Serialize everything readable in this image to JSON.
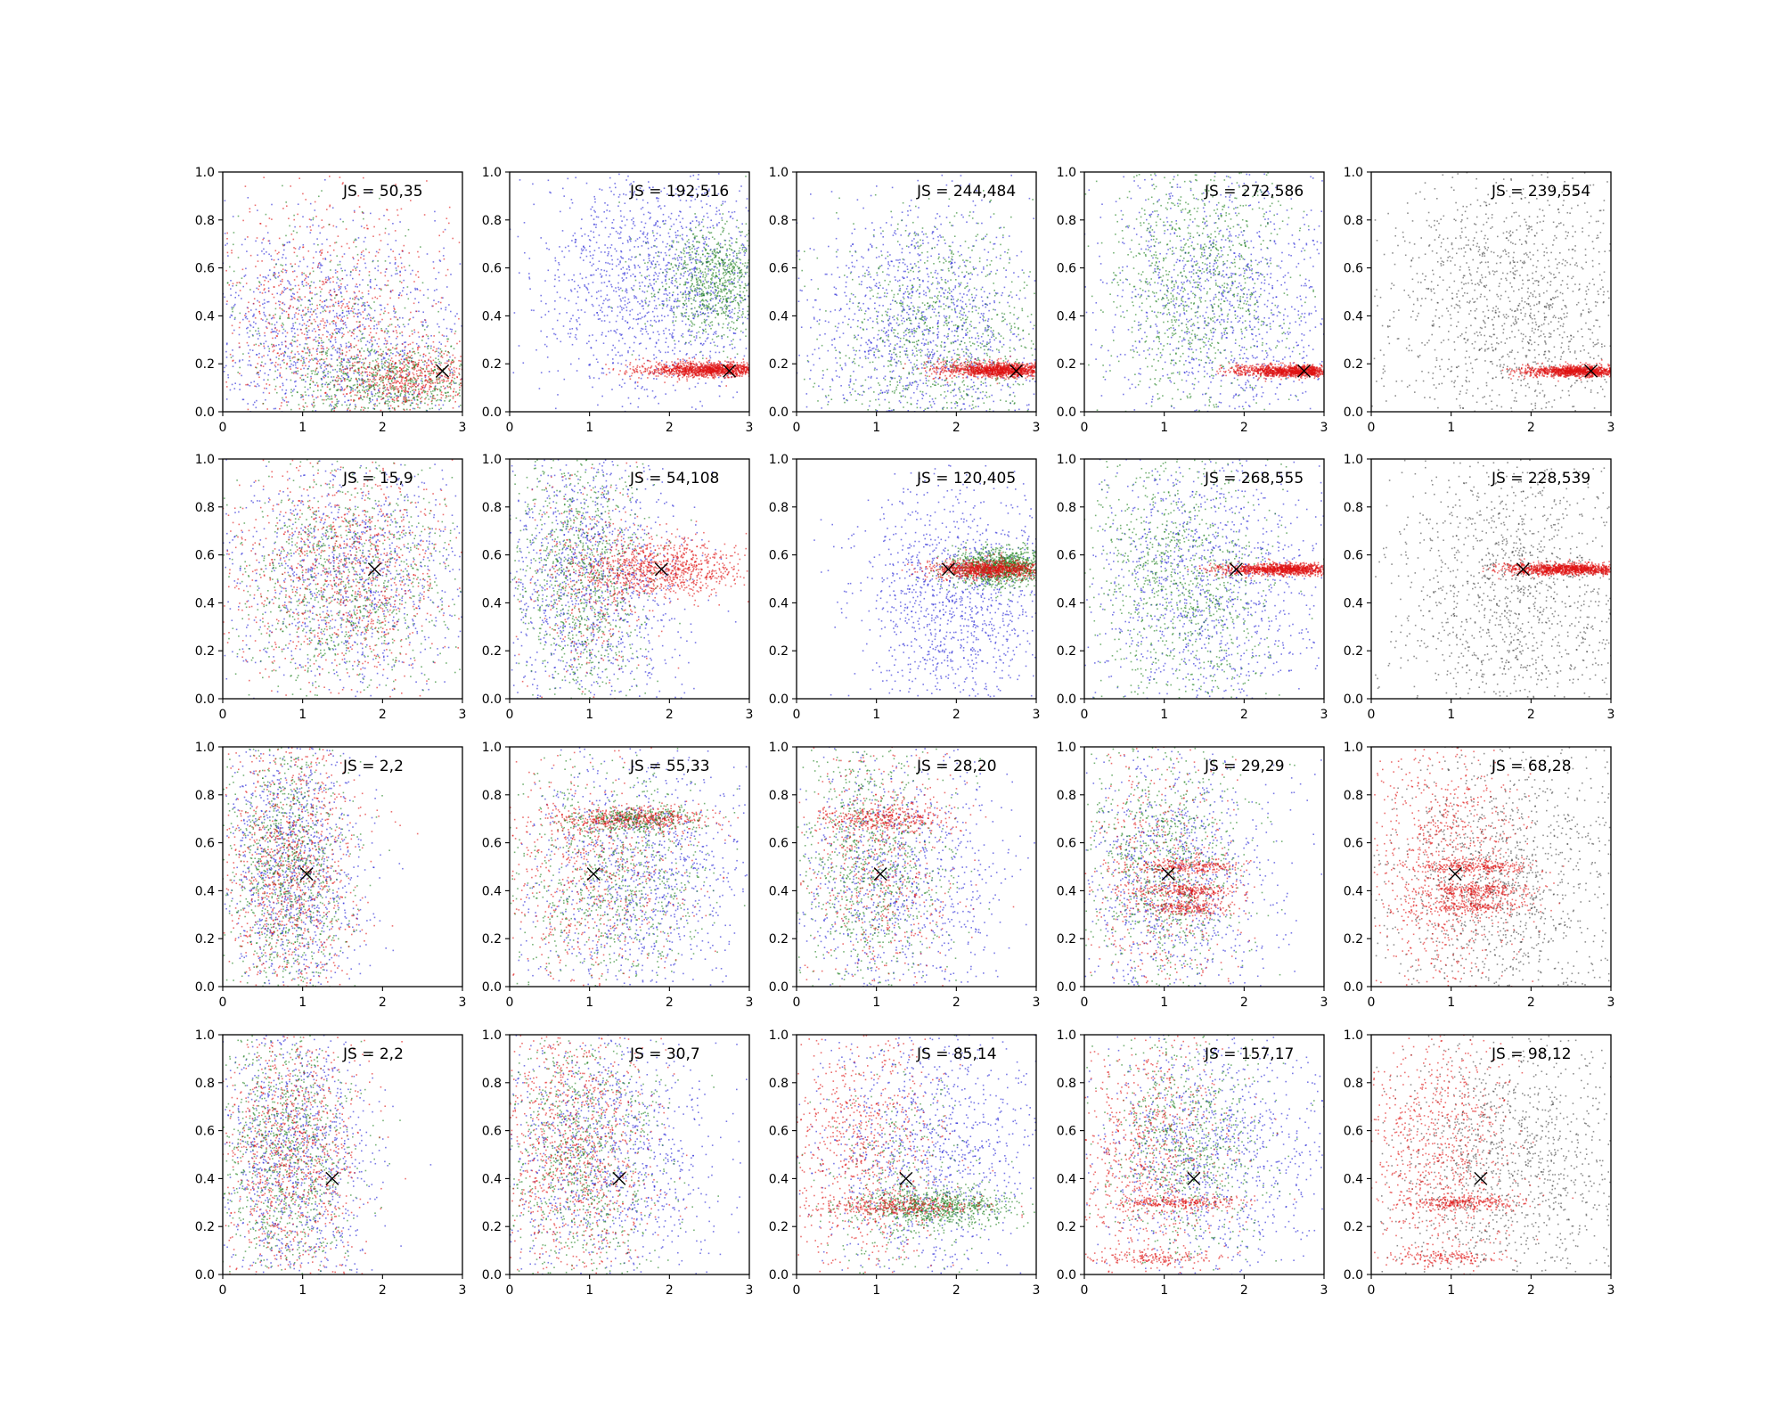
{
  "colors": {
    "blue": "#1f1fd6",
    "green": "#1a7f1a",
    "red": "#e01010",
    "black": "#333333",
    "marker": "#000000"
  },
  "chart_data": {
    "type": "scatter",
    "layout": "grid 4 rows x 5 columns",
    "xlim": [
      0,
      3
    ],
    "ylim": [
      0.0,
      1.0
    ],
    "x_ticks": [
      "0",
      "1",
      "2",
      "3"
    ],
    "y_ticks": [
      "0.0",
      "0.2",
      "0.4",
      "0.6",
      "0.8",
      "1.0"
    ],
    "annotation_prefix": "JS = ",
    "panels": [
      {
        "row": 0,
        "col": 0,
        "js": "50,35",
        "marker": [
          2.75,
          0.17
        ],
        "clusters": [
          {
            "c": "blue",
            "n": 1300,
            "x": 1.3,
            "sx": 0.9,
            "y": 0.3,
            "sy": 0.25
          },
          {
            "c": "red",
            "n": 900,
            "x": 1.3,
            "sx": 0.8,
            "y": 0.35,
            "sy": 0.3
          },
          {
            "c": "green",
            "n": 700,
            "x": 2.1,
            "sx": 0.6,
            "y": 0.13,
            "sy": 0.08
          },
          {
            "c": "red",
            "n": 500,
            "x": 2.4,
            "sx": 0.4,
            "y": 0.14,
            "sy": 0.06
          },
          {
            "c": "green",
            "n": 300,
            "x": 1.2,
            "sx": 0.7,
            "y": 0.4,
            "sy": 0.25
          }
        ]
      },
      {
        "row": 0,
        "col": 1,
        "js": "192,516",
        "marker": [
          2.75,
          0.17
        ],
        "clusters": [
          {
            "c": "blue",
            "n": 1500,
            "x": 1.9,
            "sx": 0.8,
            "y": 0.55,
            "sy": 0.25
          },
          {
            "c": "green",
            "n": 900,
            "x": 2.6,
            "sx": 0.4,
            "y": 0.55,
            "sy": 0.12
          },
          {
            "c": "red",
            "n": 1200,
            "x": 2.5,
            "sx": 0.35,
            "y": 0.175,
            "sy": 0.015
          },
          {
            "c": "red",
            "n": 80,
            "x": 1.8,
            "sx": 0.3,
            "y": 0.18,
            "sy": 0.02
          }
        ]
      },
      {
        "row": 0,
        "col": 2,
        "js": "244,484",
        "marker": [
          2.75,
          0.17
        ],
        "clusters": [
          {
            "c": "blue",
            "n": 1300,
            "x": 1.6,
            "sx": 0.8,
            "y": 0.35,
            "sy": 0.25
          },
          {
            "c": "green",
            "n": 1000,
            "x": 1.8,
            "sx": 0.7,
            "y": 0.3,
            "sy": 0.25
          },
          {
            "c": "red",
            "n": 1200,
            "x": 2.55,
            "sx": 0.3,
            "y": 0.175,
            "sy": 0.015
          },
          {
            "c": "red",
            "n": 80,
            "x": 1.9,
            "sx": 0.2,
            "y": 0.18,
            "sy": 0.02
          }
        ]
      },
      {
        "row": 0,
        "col": 3,
        "js": "272,586",
        "marker": [
          2.75,
          0.17
        ],
        "clusters": [
          {
            "c": "blue",
            "n": 1200,
            "x": 1.8,
            "sx": 0.8,
            "y": 0.45,
            "sy": 0.3
          },
          {
            "c": "green",
            "n": 1000,
            "x": 1.4,
            "sx": 0.6,
            "y": 0.55,
            "sy": 0.28
          },
          {
            "c": "red",
            "n": 1100,
            "x": 2.6,
            "sx": 0.3,
            "y": 0.17,
            "sy": 0.012
          },
          {
            "c": "red",
            "n": 60,
            "x": 1.95,
            "sx": 0.15,
            "y": 0.17,
            "sy": 0.015
          }
        ]
      },
      {
        "row": 0,
        "col": 4,
        "js": "239,554",
        "marker": [
          2.75,
          0.17
        ],
        "clusters": [
          {
            "c": "black",
            "n": 1400,
            "x": 1.8,
            "sx": 0.8,
            "y": 0.45,
            "sy": 0.3
          },
          {
            "c": "red",
            "n": 1100,
            "x": 2.6,
            "sx": 0.3,
            "y": 0.17,
            "sy": 0.012
          },
          {
            "c": "red",
            "n": 60,
            "x": 1.95,
            "sx": 0.15,
            "y": 0.17,
            "sy": 0.015
          }
        ]
      },
      {
        "row": 1,
        "col": 0,
        "js": "15,9",
        "marker": [
          1.9,
          0.54
        ],
        "clusters": [
          {
            "c": "blue",
            "n": 1100,
            "x": 1.6,
            "sx": 0.8,
            "y": 0.5,
            "sy": 0.25
          },
          {
            "c": "green",
            "n": 1000,
            "x": 1.5,
            "sx": 0.7,
            "y": 0.5,
            "sy": 0.25
          },
          {
            "c": "red",
            "n": 1000,
            "x": 1.5,
            "sx": 0.7,
            "y": 0.52,
            "sy": 0.25
          }
        ]
      },
      {
        "row": 1,
        "col": 1,
        "js": "54,108",
        "marker": [
          1.9,
          0.54
        ],
        "clusters": [
          {
            "c": "blue",
            "n": 1200,
            "x": 1.0,
            "sx": 0.6,
            "y": 0.5,
            "sy": 0.28
          },
          {
            "c": "green",
            "n": 1000,
            "x": 0.9,
            "sx": 0.4,
            "y": 0.5,
            "sy": 0.3
          },
          {
            "c": "red",
            "n": 900,
            "x": 1.9,
            "sx": 0.5,
            "y": 0.54,
            "sy": 0.06
          },
          {
            "c": "red",
            "n": 300,
            "x": 1.0,
            "sx": 0.4,
            "y": 0.5,
            "sy": 0.25
          }
        ]
      },
      {
        "row": 1,
        "col": 2,
        "js": "120,405",
        "marker": [
          1.9,
          0.54
        ],
        "clusters": [
          {
            "c": "blue",
            "n": 1200,
            "x": 2.0,
            "sx": 0.6,
            "y": 0.4,
            "sy": 0.25
          },
          {
            "c": "green",
            "n": 1100,
            "x": 2.6,
            "sx": 0.35,
            "y": 0.55,
            "sy": 0.04
          },
          {
            "c": "red",
            "n": 1000,
            "x": 2.4,
            "sx": 0.35,
            "y": 0.54,
            "sy": 0.02
          }
        ]
      },
      {
        "row": 1,
        "col": 3,
        "js": "268,555",
        "marker": [
          1.9,
          0.54
        ],
        "clusters": [
          {
            "c": "blue",
            "n": 1200,
            "x": 1.6,
            "sx": 0.8,
            "y": 0.45,
            "sy": 0.3
          },
          {
            "c": "green",
            "n": 1000,
            "x": 1.2,
            "sx": 0.6,
            "y": 0.5,
            "sy": 0.28
          },
          {
            "c": "red",
            "n": 1100,
            "x": 2.5,
            "sx": 0.35,
            "y": 0.54,
            "sy": 0.012
          },
          {
            "c": "red",
            "n": 60,
            "x": 1.85,
            "sx": 0.2,
            "y": 0.54,
            "sy": 0.015
          }
        ]
      },
      {
        "row": 1,
        "col": 4,
        "js": "228,539",
        "marker": [
          1.9,
          0.54
        ],
        "clusters": [
          {
            "c": "black",
            "n": 1400,
            "x": 1.8,
            "sx": 0.8,
            "y": 0.45,
            "sy": 0.3
          },
          {
            "c": "red",
            "n": 1100,
            "x": 2.5,
            "sx": 0.35,
            "y": 0.54,
            "sy": 0.012
          },
          {
            "c": "red",
            "n": 60,
            "x": 1.85,
            "sx": 0.2,
            "y": 0.54,
            "sy": 0.015
          }
        ]
      },
      {
        "row": 2,
        "col": 0,
        "js": "2,2",
        "marker": [
          1.05,
          0.47
        ],
        "clusters": [
          {
            "c": "blue",
            "n": 1100,
            "x": 0.9,
            "sx": 0.45,
            "y": 0.5,
            "sy": 0.3
          },
          {
            "c": "green",
            "n": 1000,
            "x": 0.8,
            "sx": 0.4,
            "y": 0.5,
            "sy": 0.3
          },
          {
            "c": "red",
            "n": 1000,
            "x": 0.85,
            "sx": 0.45,
            "y": 0.5,
            "sy": 0.3
          }
        ]
      },
      {
        "row": 2,
        "col": 1,
        "js": "55,33",
        "marker": [
          1.05,
          0.47
        ],
        "clusters": [
          {
            "c": "blue",
            "n": 1100,
            "x": 1.6,
            "sx": 0.7,
            "y": 0.45,
            "sy": 0.28
          },
          {
            "c": "green",
            "n": 800,
            "x": 1.3,
            "sx": 0.6,
            "y": 0.45,
            "sy": 0.25
          },
          {
            "c": "red",
            "n": 500,
            "x": 1.6,
            "sx": 0.5,
            "y": 0.7,
            "sy": 0.025
          },
          {
            "c": "red",
            "n": 600,
            "x": 1.0,
            "sx": 0.6,
            "y": 0.45,
            "sy": 0.25
          },
          {
            "c": "green",
            "n": 250,
            "x": 1.6,
            "sx": 0.4,
            "y": 0.7,
            "sy": 0.025
          }
        ]
      },
      {
        "row": 2,
        "col": 2,
        "js": "28,20",
        "marker": [
          1.05,
          0.47
        ],
        "clusters": [
          {
            "c": "blue",
            "n": 1000,
            "x": 1.3,
            "sx": 0.7,
            "y": 0.45,
            "sy": 0.28
          },
          {
            "c": "green",
            "n": 900,
            "x": 0.9,
            "sx": 0.5,
            "y": 0.5,
            "sy": 0.28
          },
          {
            "c": "red",
            "n": 600,
            "x": 1.0,
            "sx": 0.5,
            "y": 0.5,
            "sy": 0.28
          },
          {
            "c": "red",
            "n": 300,
            "x": 1.1,
            "sx": 0.4,
            "y": 0.7,
            "sy": 0.025
          }
        ]
      },
      {
        "row": 2,
        "col": 3,
        "js": "29,29",
        "marker": [
          1.05,
          0.47
        ],
        "clusters": [
          {
            "c": "blue",
            "n": 1000,
            "x": 1.1,
            "sx": 0.7,
            "y": 0.45,
            "sy": 0.28
          },
          {
            "c": "green",
            "n": 900,
            "x": 1.0,
            "sx": 0.5,
            "y": 0.5,
            "sy": 0.25
          },
          {
            "c": "red",
            "n": 500,
            "x": 0.9,
            "sx": 0.5,
            "y": 0.45,
            "sy": 0.28
          },
          {
            "c": "red",
            "n": 250,
            "x": 1.3,
            "sx": 0.3,
            "y": 0.5,
            "sy": 0.015
          },
          {
            "c": "red",
            "n": 250,
            "x": 1.3,
            "sx": 0.3,
            "y": 0.4,
            "sy": 0.015
          },
          {
            "c": "red",
            "n": 200,
            "x": 1.3,
            "sx": 0.3,
            "y": 0.33,
            "sy": 0.015
          }
        ]
      },
      {
        "row": 2,
        "col": 4,
        "js": "68,28",
        "marker": [
          1.05,
          0.47
        ],
        "clusters": [
          {
            "c": "black",
            "n": 1300,
            "x": 1.7,
            "sx": 0.8,
            "y": 0.45,
            "sy": 0.3
          },
          {
            "c": "red",
            "n": 900,
            "x": 0.9,
            "sx": 0.5,
            "y": 0.5,
            "sy": 0.28
          },
          {
            "c": "red",
            "n": 250,
            "x": 1.3,
            "sx": 0.35,
            "y": 0.5,
            "sy": 0.015
          },
          {
            "c": "red",
            "n": 250,
            "x": 1.3,
            "sx": 0.35,
            "y": 0.4,
            "sy": 0.015
          },
          {
            "c": "red",
            "n": 200,
            "x": 1.3,
            "sx": 0.35,
            "y": 0.33,
            "sy": 0.015
          }
        ]
      },
      {
        "row": 3,
        "col": 0,
        "js": "2,2",
        "marker": [
          1.37,
          0.4
        ],
        "clusters": [
          {
            "c": "blue",
            "n": 1100,
            "x": 0.9,
            "sx": 0.5,
            "y": 0.5,
            "sy": 0.3
          },
          {
            "c": "green",
            "n": 1000,
            "x": 0.8,
            "sx": 0.45,
            "y": 0.5,
            "sy": 0.3
          },
          {
            "c": "red",
            "n": 1000,
            "x": 0.85,
            "sx": 0.45,
            "y": 0.5,
            "sy": 0.3
          }
        ]
      },
      {
        "row": 3,
        "col": 1,
        "js": "30,7",
        "marker": [
          1.37,
          0.4
        ],
        "clusters": [
          {
            "c": "blue",
            "n": 1100,
            "x": 1.2,
            "sx": 0.7,
            "y": 0.5,
            "sy": 0.28
          },
          {
            "c": "green",
            "n": 900,
            "x": 0.9,
            "sx": 0.5,
            "y": 0.5,
            "sy": 0.28
          },
          {
            "c": "red",
            "n": 1000,
            "x": 0.8,
            "sx": 0.5,
            "y": 0.5,
            "sy": 0.28
          }
        ]
      },
      {
        "row": 3,
        "col": 2,
        "js": "85,14",
        "marker": [
          1.37,
          0.4
        ],
        "clusters": [
          {
            "c": "blue",
            "n": 1100,
            "x": 1.6,
            "sx": 0.7,
            "y": 0.5,
            "sy": 0.28
          },
          {
            "c": "green",
            "n": 700,
            "x": 1.8,
            "sx": 0.5,
            "y": 0.28,
            "sy": 0.04
          },
          {
            "c": "green",
            "n": 300,
            "x": 1.2,
            "sx": 0.5,
            "y": 0.4,
            "sy": 0.25
          },
          {
            "c": "red",
            "n": 800,
            "x": 0.8,
            "sx": 0.5,
            "y": 0.5,
            "sy": 0.28
          },
          {
            "c": "red",
            "n": 300,
            "x": 1.3,
            "sx": 0.5,
            "y": 0.28,
            "sy": 0.02
          }
        ]
      },
      {
        "row": 3,
        "col": 3,
        "js": "157,17",
        "marker": [
          1.37,
          0.4
        ],
        "clusters": [
          {
            "c": "blue",
            "n": 1100,
            "x": 1.6,
            "sx": 0.7,
            "y": 0.5,
            "sy": 0.28
          },
          {
            "c": "green",
            "n": 800,
            "x": 1.3,
            "sx": 0.5,
            "y": 0.55,
            "sy": 0.25
          },
          {
            "c": "red",
            "n": 800,
            "x": 0.8,
            "sx": 0.5,
            "y": 0.5,
            "sy": 0.28
          },
          {
            "c": "red",
            "n": 250,
            "x": 1.2,
            "sx": 0.4,
            "y": 0.3,
            "sy": 0.015
          },
          {
            "c": "red",
            "n": 150,
            "x": 0.9,
            "sx": 0.4,
            "y": 0.07,
            "sy": 0.015
          }
        ]
      },
      {
        "row": 3,
        "col": 4,
        "js": "98,12",
        "marker": [
          1.37,
          0.4
        ],
        "clusters": [
          {
            "c": "black",
            "n": 1300,
            "x": 1.7,
            "sx": 0.8,
            "y": 0.45,
            "sy": 0.3
          },
          {
            "c": "red",
            "n": 900,
            "x": 0.8,
            "sx": 0.5,
            "y": 0.5,
            "sy": 0.28
          },
          {
            "c": "red",
            "n": 250,
            "x": 1.2,
            "sx": 0.35,
            "y": 0.3,
            "sy": 0.015
          },
          {
            "c": "red",
            "n": 150,
            "x": 0.9,
            "sx": 0.35,
            "y": 0.07,
            "sy": 0.015
          }
        ]
      }
    ]
  }
}
